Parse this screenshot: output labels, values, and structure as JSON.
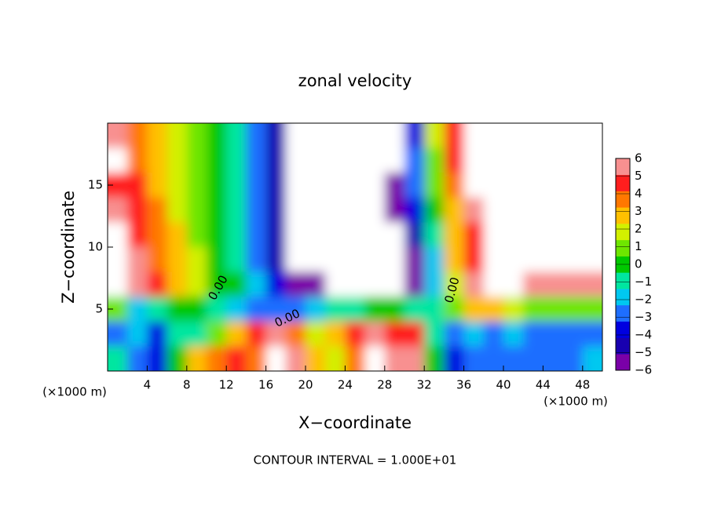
{
  "chart_data": {
    "type": "contour",
    "title": "zonal velocity",
    "x_label": "X−coordinate",
    "y_label": "Z−coordinate",
    "x_unit_label": "(×1000 m)",
    "y_unit_label": "(×1000 m)",
    "footer": "CONTOUR INTERVAL = 1.000E+01",
    "xlim": [
      0,
      50
    ],
    "ylim": [
      0,
      20
    ],
    "xticks": [
      4,
      8,
      12,
      16,
      20,
      24,
      28,
      32,
      36,
      40,
      44,
      48
    ],
    "yticks": [
      5,
      10,
      15
    ],
    "x": [
      1,
      3,
      5,
      7,
      9,
      11,
      13,
      15,
      17,
      19,
      21,
      23,
      25,
      27,
      29,
      31,
      33,
      35,
      37,
      39,
      41,
      43,
      45,
      47,
      49
    ],
    "y": [
      19,
      17,
      15,
      13,
      11,
      9,
      7,
      5,
      3,
      1
    ],
    "values": [
      [
        6,
        4,
        3,
        2,
        1,
        0,
        -1,
        -3,
        -5,
        -8,
        -8,
        -8,
        -8,
        -8,
        -8,
        -4,
        2,
        5,
        8,
        8,
        8,
        8,
        8,
        8,
        8
      ],
      [
        7,
        4,
        3,
        2,
        1,
        0,
        -1,
        -3,
        -5,
        -8,
        -8,
        -8,
        -8,
        -8,
        -8,
        -3,
        1,
        5,
        8,
        8,
        8,
        8,
        8,
        8,
        8
      ],
      [
        5,
        5,
        3,
        2,
        1,
        0,
        -1,
        -3,
        -5,
        -8,
        -8,
        -8,
        -8,
        -8,
        -6,
        -3,
        1,
        4,
        7,
        8,
        8,
        8,
        8,
        8,
        7
      ],
      [
        6,
        5,
        4,
        2,
        1,
        0,
        -1,
        -3,
        -5,
        -8,
        -8,
        -8,
        -8,
        -8,
        -6,
        -4,
        0,
        3,
        6,
        8,
        8,
        8,
        8,
        8,
        8
      ],
      [
        8,
        5,
        4,
        3,
        1,
        0,
        -1,
        -3,
        -5,
        -8,
        -8,
        -8,
        -8,
        -8,
        -7,
        -5,
        -1,
        3,
        5,
        8,
        8,
        8,
        8,
        8,
        8
      ],
      [
        8,
        6,
        4,
        3,
        2,
        0,
        -1,
        -3,
        -5,
        -8,
        -8,
        -8,
        -8,
        -8,
        -8,
        -6,
        -2,
        3,
        5,
        8,
        8,
        8,
        8,
        8,
        8
      ],
      [
        8,
        6,
        5,
        3,
        2,
        0,
        0,
        -2,
        -4,
        -6,
        -6,
        -7,
        -7,
        -8,
        -8,
        -6,
        -2,
        2,
        6,
        7,
        7,
        6,
        6,
        6,
        6
      ],
      [
        1,
        -2,
        -1,
        0,
        0,
        -1,
        -2,
        -3,
        -3,
        -3,
        -2,
        -1,
        -1,
        0,
        0,
        -1,
        -1,
        1,
        3,
        3,
        2,
        1,
        1,
        1,
        1
      ],
      [
        -3,
        -2,
        -4,
        -1,
        -1,
        1,
        3,
        5,
        6,
        4,
        2,
        3,
        5,
        6,
        5,
        5,
        -1,
        -3,
        -2,
        -3,
        -2,
        -3,
        -3,
        -3,
        -3
      ],
      [
        -1,
        -3,
        -4,
        0,
        3,
        4,
        5,
        4,
        8,
        6,
        3,
        2,
        4,
        7,
        6,
        6,
        0,
        -4,
        -3,
        -3,
        -3,
        -3,
        -3,
        -3,
        -2
      ]
    ],
    "colorbar": {
      "ticks": [
        {
          "value": -6,
          "label": "−6"
        },
        {
          "value": -5,
          "label": "−5"
        },
        {
          "value": -4,
          "label": "−4"
        },
        {
          "value": -3,
          "label": "−3"
        },
        {
          "value": -2,
          "label": "−2"
        },
        {
          "value": -1,
          "label": "−1"
        },
        0,
        1,
        2,
        3,
        4,
        5,
        6
      ],
      "colors": [
        "#7a00a8",
        "#1800b0",
        "#0000e0",
        "#1e6eff",
        "#00c8f0",
        "#00e6a0",
        "#00c800",
        "#6ee600",
        "#d2f000",
        "#ffc000",
        "#ff7800",
        "#ff1e1e",
        "#f89090"
      ]
    },
    "annotations": [
      "0.00",
      "0.00",
      "0.00"
    ]
  }
}
